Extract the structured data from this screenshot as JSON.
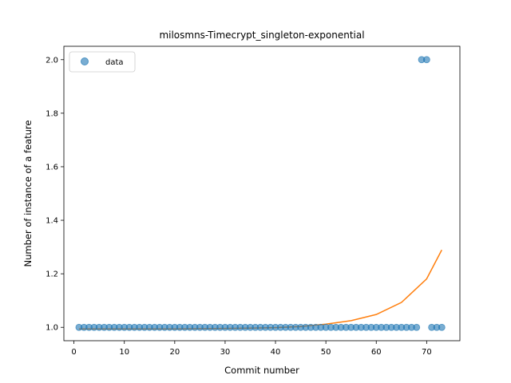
{
  "chart_data": {
    "type": "scatter",
    "title": "milosmns-Timecrypt_singleton-exponential",
    "xlabel": "Commit number",
    "ylabel": "Number of instance of a feature",
    "xlim": [
      -2,
      76.6
    ],
    "ylim": [
      0.95,
      2.05
    ],
    "xticks": [
      0,
      10,
      20,
      30,
      40,
      50,
      60,
      70
    ],
    "yticks": [
      1.0,
      1.2,
      1.4,
      1.6,
      1.8,
      2.0
    ],
    "xtick_labels": [
      "0",
      "10",
      "20",
      "30",
      "40",
      "50",
      "60",
      "70"
    ],
    "ytick_labels": [
      "1.0",
      "1.2",
      "1.4",
      "1.6",
      "1.8",
      "2.0"
    ],
    "grid": false,
    "legend": {
      "position": "top-left",
      "entries": [
        "data"
      ]
    },
    "series": [
      {
        "name": "data",
        "kind": "points",
        "color": "#1f77b4",
        "x": [
          1,
          2,
          3,
          4,
          5,
          6,
          7,
          8,
          9,
          10,
          11,
          12,
          13,
          14,
          15,
          16,
          17,
          18,
          19,
          20,
          21,
          22,
          23,
          24,
          25,
          26,
          27,
          28,
          29,
          30,
          31,
          32,
          33,
          34,
          35,
          36,
          37,
          38,
          39,
          40,
          41,
          42,
          43,
          44,
          45,
          46,
          47,
          48,
          49,
          50,
          51,
          52,
          53,
          54,
          55,
          56,
          57,
          58,
          59,
          60,
          61,
          62,
          63,
          64,
          65,
          66,
          67,
          68,
          69,
          70,
          71,
          72,
          73
        ],
        "y": [
          1,
          1,
          1,
          1,
          1,
          1,
          1,
          1,
          1,
          1,
          1,
          1,
          1,
          1,
          1,
          1,
          1,
          1,
          1,
          1,
          1,
          1,
          1,
          1,
          1,
          1,
          1,
          1,
          1,
          1,
          1,
          1,
          1,
          1,
          1,
          1,
          1,
          1,
          1,
          1,
          1,
          1,
          1,
          1,
          1,
          1,
          1,
          1,
          1,
          1,
          1,
          1,
          1,
          1,
          1,
          1,
          1,
          1,
          1,
          1,
          1,
          1,
          1,
          1,
          1,
          1,
          1,
          1,
          2,
          2,
          1,
          1,
          1
        ]
      },
      {
        "kind": "fit-line",
        "color": "#ff7f0e",
        "x": [
          1,
          5,
          10,
          15,
          20,
          25,
          30,
          35,
          40,
          45,
          50,
          55,
          60,
          65,
          70,
          73
        ],
        "y": [
          0.994,
          0.994,
          0.994,
          0.994,
          0.994,
          0.995,
          0.996,
          0.997,
          0.999,
          1.003,
          1.012,
          1.025,
          1.048,
          1.093,
          1.181,
          1.289
        ]
      }
    ]
  }
}
